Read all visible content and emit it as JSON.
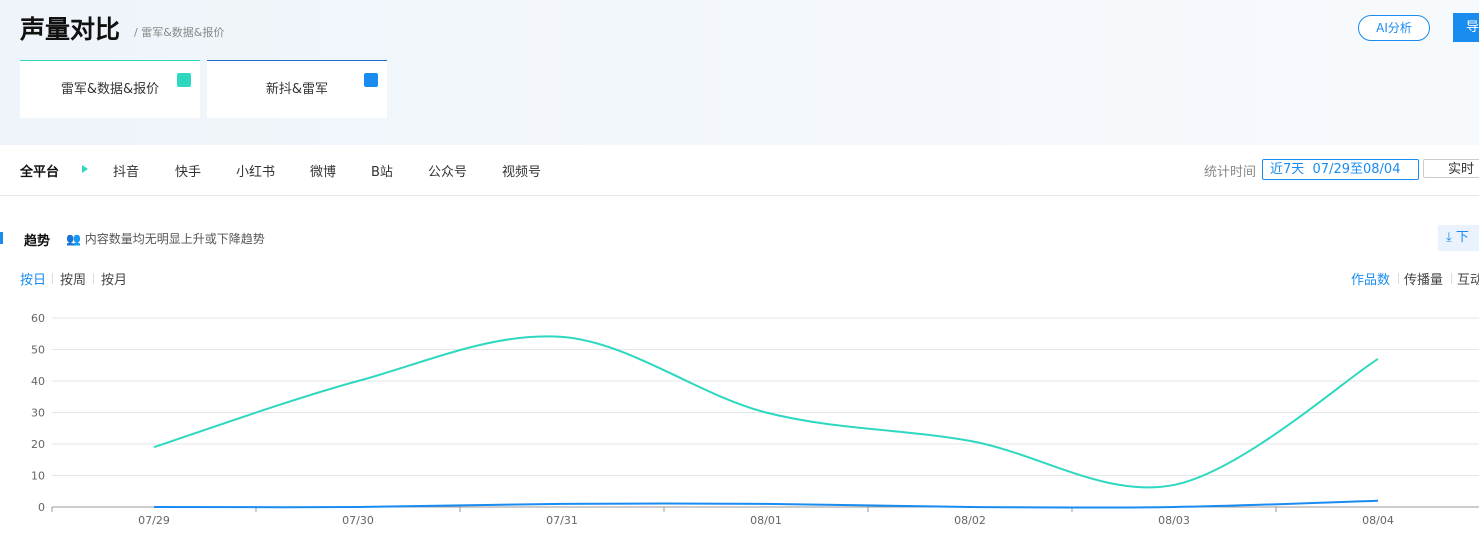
{
  "header": {
    "title": "声量对比",
    "breadcrumb": "/ 雷军&数据&报价",
    "ai_button": "AI分析",
    "export_button": "导"
  },
  "cards": [
    {
      "label": "雷军&数据&报价"
    },
    {
      "label": "新抖&雷军"
    }
  ],
  "platform_tabs": [
    "全平台",
    "抖音",
    "快手",
    "小红书",
    "微博",
    "B站",
    "公众号",
    "视频号"
  ],
  "time_filter": {
    "label": "统计时间",
    "range": "近7天  07/29至08/04",
    "realtime": "实时"
  },
  "trend": {
    "title": "趋势",
    "insight": "内容数量均无明显上升或下降趋势",
    "download": "下"
  },
  "granularity": [
    "按日",
    "按周",
    "按月"
  ],
  "metrics": [
    "作品数",
    "传播量",
    "互动"
  ],
  "chart_data": {
    "type": "line",
    "categories": [
      "07/29",
      "07/30",
      "07/31",
      "08/01",
      "08/02",
      "08/03",
      "08/04"
    ],
    "ylim": [
      0,
      60
    ],
    "yticks": [
      0,
      10,
      20,
      30,
      40,
      50,
      60
    ],
    "grid": true,
    "smooth": true,
    "series": [
      {
        "color": "#2ed8c0",
        "values": [
          19,
          40,
          54,
          30,
          21,
          7,
          47
        ]
      },
      {
        "color": "#1a8cf0",
        "values": [
          0,
          0,
          1,
          1,
          0,
          0,
          2
        ]
      }
    ]
  }
}
